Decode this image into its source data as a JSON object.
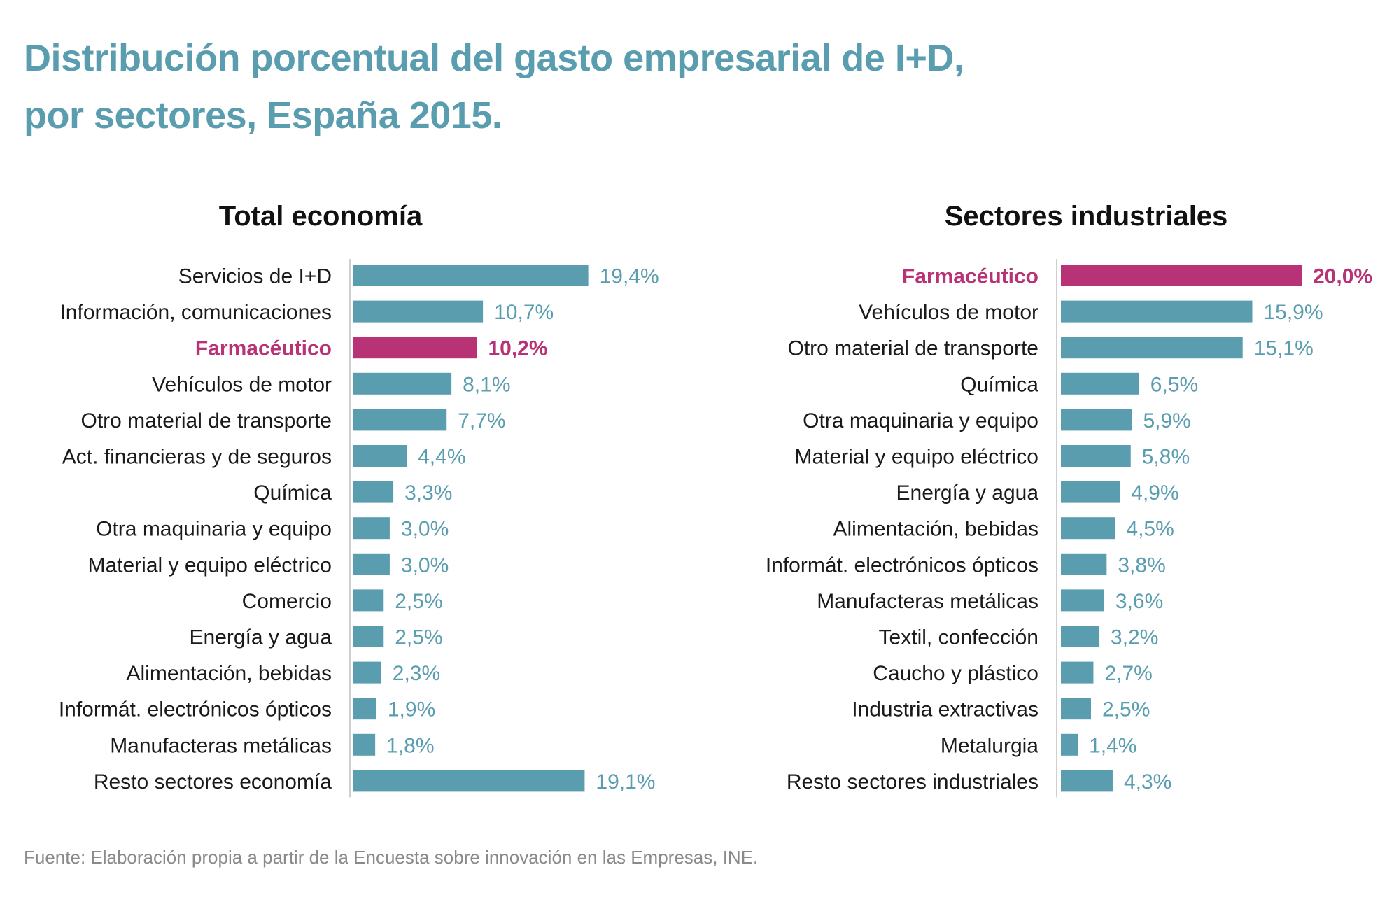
{
  "title": {
    "line1": "Distribución porcentual del gasto empresarial de I+D,",
    "line2": "por sectores, España 2015."
  },
  "source": "Fuente: Elaboración propia a partir de la Encuesta sobre innovación en las Empresas, INE.",
  "colors": {
    "title": "#5a9daf",
    "bar": "#5a9daf",
    "highlight": "#b83276",
    "label": "#1a1a1a",
    "source": "#8a8a8a"
  },
  "chart_data": [
    {
      "type": "bar",
      "orientation": "horizontal",
      "title": "Total economía",
      "highlight": "Farmacéutico",
      "categories": [
        "Servicios de I+D",
        "Información, comunicaciones",
        "Farmacéutico",
        "Vehículos de motor",
        "Otro material de transporte",
        "Act. financieras y de seguros",
        "Química",
        "Otra maquinaria y equipo",
        "Material y equipo eléctrico",
        "Comercio",
        "Energía y agua",
        "Alimentación, bebidas",
        "Informát. electrónicos ópticos",
        "Manufacteras metálicas",
        "Resto sectores economía"
      ],
      "values": [
        19.4,
        10.7,
        10.2,
        8.1,
        7.7,
        4.4,
        3.3,
        3.0,
        3.0,
        2.5,
        2.5,
        2.3,
        1.9,
        1.8,
        19.1
      ],
      "value_labels": [
        "19,4%",
        "10,7%",
        "10,2%",
        "8,1%",
        "7,7%",
        "4,4%",
        "3,3%",
        "3,0%",
        "3,0%",
        "2,5%",
        "2,5%",
        "2,3%",
        "1,9%",
        "1,8%",
        "19,1%"
      ],
      "xlim": [
        0,
        20
      ]
    },
    {
      "type": "bar",
      "orientation": "horizontal",
      "title": "Sectores industriales",
      "highlight": "Farmacéutico",
      "categories": [
        "Farmacéutico",
        "Vehículos de motor",
        "Otro material de transporte",
        "Química",
        "Otra maquinaria y equipo",
        "Material y equipo eléctrico",
        "Energía y agua",
        "Alimentación, bebidas",
        "Informát. electrónicos ópticos",
        "Manufacteras metálicas",
        "Textil, confección",
        "Caucho y plástico",
        "Industria extractivas",
        "Metalurgia",
        "Resto sectores industriales"
      ],
      "values": [
        20.0,
        15.9,
        15.1,
        6.5,
        5.9,
        5.8,
        4.9,
        4.5,
        3.8,
        3.6,
        3.2,
        2.7,
        2.5,
        1.4,
        4.3
      ],
      "value_labels": [
        "20,0%",
        "15,9%",
        "15,1%",
        "6,5%",
        "5,9%",
        "5,8%",
        "4,9%",
        "4,5%",
        "3,8%",
        "3,6%",
        "3,2%",
        "2,7%",
        "2,5%",
        "1,4%",
        "4,3%"
      ],
      "xlim": [
        0,
        20
      ]
    }
  ]
}
